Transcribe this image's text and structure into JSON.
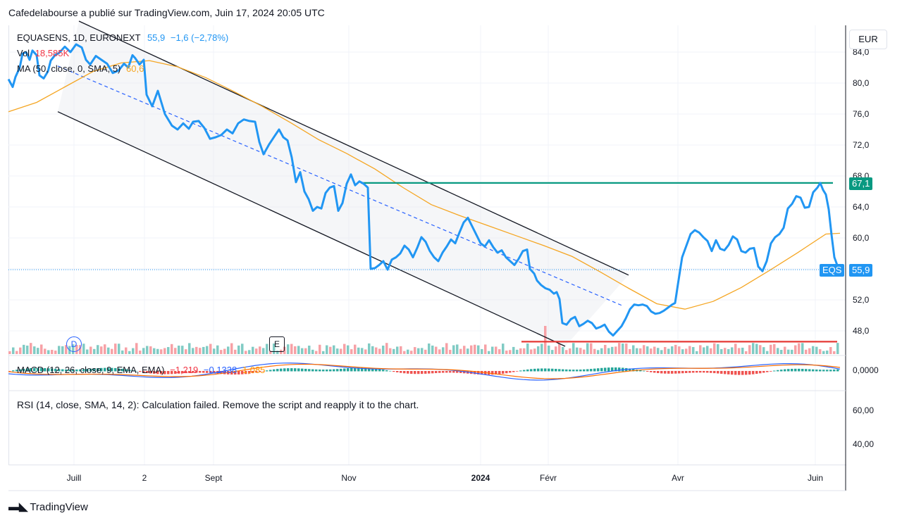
{
  "header": {
    "publisher_line": "Cafedelabourse a publié sur TradingView.com, Juin 17, 2024 20:05 UTC"
  },
  "legend": {
    "symbol": "EQUASENS, 1D, EURONEXT",
    "last": "55,9",
    "change": "−1,6 (−2,78%)",
    "vol_label": "Vol",
    "vol_value": "18,585K",
    "ma_label": "MA (50, close, 0, SMA, 5)",
    "ma_value": "60,6",
    "macd_label": "MACD (12, 26, close, 9, EMA, EMA)",
    "macd_hist": "−1,219",
    "macd_line": "−0,1338",
    "macd_signal": "1,085",
    "rsi_message": "RSI (14, close, SMA, 14, 2): Calculation failed. Remove the script and reapply it to the chart."
  },
  "currency": "EUR",
  "price_axis": [
    "84,0",
    "80,0",
    "76,0",
    "72,0",
    "68,0",
    "64,0",
    "60,0",
    "56,0",
    "52,0",
    "48,0"
  ],
  "macd_axis": [
    "0,0000"
  ],
  "rsi_axis": [
    "60,00",
    "40,00"
  ],
  "time_axis": [
    "Juill",
    "2",
    "Sept",
    "Nov",
    "2024",
    "Févr",
    "Avr",
    "Juin"
  ],
  "tags": {
    "resistance": "67,1",
    "symbol_short": "EQS",
    "last_price": "55,9"
  },
  "event_markers": {
    "dividend": "D",
    "earnings": "E"
  },
  "colors": {
    "price_line": "#2196f3",
    "ma": "#f5a623",
    "resistance": "#089981",
    "support": "#e53935",
    "vol_up": "#80cbc4",
    "vol_down": "#f7a1a6",
    "macd": "#2962ff",
    "signal": "#ff6d00",
    "channel": "#131722"
  },
  "footer": {
    "brand": "TradingView"
  },
  "chart_data": {
    "type": "line",
    "title": "EQUASENS, 1D, EURONEXT",
    "ylim": [
      45,
      86
    ],
    "price_series": {
      "name": "EQUASENS",
      "points": [
        [
          0,
          80.5
        ],
        [
          6,
          79.5
        ],
        [
          10,
          80.8
        ],
        [
          16,
          82.0
        ],
        [
          20,
          83.8
        ],
        [
          25,
          84.0
        ],
        [
          30,
          83.0
        ],
        [
          34,
          84.2
        ],
        [
          40,
          83.6
        ],
        [
          44,
          81.0
        ],
        [
          50,
          80.6
        ],
        [
          56,
          81.5
        ],
        [
          60,
          82.9
        ],
        [
          66,
          83.6
        ],
        [
          72,
          83.9
        ],
        [
          80,
          84.7
        ],
        [
          88,
          84.0
        ],
        [
          96,
          85.0
        ],
        [
          104,
          84.6
        ],
        [
          110,
          83.0
        ],
        [
          116,
          82.4
        ],
        [
          124,
          83.5
        ],
        [
          132,
          83.0
        ],
        [
          140,
          82.5
        ],
        [
          148,
          81.3
        ],
        [
          156,
          81.6
        ],
        [
          164,
          82.5
        ],
        [
          170,
          82.0
        ],
        [
          176,
          83.6
        ],
        [
          180,
          83.2
        ],
        [
          186,
          82.4
        ],
        [
          192,
          83.0
        ],
        [
          196,
          78.5
        ],
        [
          204,
          77.0
        ],
        [
          212,
          79.0
        ],
        [
          222,
          76.0
        ],
        [
          232,
          74.5
        ],
        [
          240,
          74.0
        ],
        [
          248,
          74.8
        ],
        [
          256,
          74.1
        ],
        [
          262,
          75.0
        ],
        [
          270,
          75.1
        ],
        [
          278,
          74.2
        ],
        [
          286,
          72.8
        ],
        [
          294,
          73.0
        ],
        [
          302,
          73.3
        ],
        [
          310,
          74.0
        ],
        [
          318,
          73.5
        ],
        [
          326,
          74.8
        ],
        [
          334,
          75.3
        ],
        [
          342,
          75.1
        ],
        [
          350,
          75.0
        ],
        [
          356,
          72.4
        ],
        [
          362,
          70.8
        ],
        [
          370,
          72.1
        ],
        [
          378,
          73.2
        ],
        [
          384,
          74.0
        ],
        [
          390,
          73.0
        ],
        [
          396,
          72.6
        ],
        [
          402,
          70.4
        ],
        [
          408,
          67.2
        ],
        [
          414,
          68.5
        ],
        [
          420,
          66.0
        ],
        [
          426,
          65.0
        ],
        [
          432,
          63.5
        ],
        [
          438,
          64.0
        ],
        [
          444,
          63.8
        ],
        [
          450,
          65.8
        ],
        [
          456,
          66.5
        ],
        [
          462,
          66.7
        ],
        [
          468,
          63.5
        ],
        [
          474,
          64.5
        ],
        [
          480,
          67.0
        ],
        [
          486,
          68.2
        ],
        [
          492,
          66.8
        ],
        [
          498,
          67.3
        ],
        [
          504,
          67.0
        ],
        [
          510,
          66.5
        ],
        [
          514,
          56.0
        ],
        [
          520,
          56.1
        ],
        [
          526,
          56.5
        ],
        [
          532,
          57.0
        ],
        [
          538,
          55.9
        ],
        [
          544,
          57.2
        ],
        [
          550,
          57.5
        ],
        [
          556,
          58.0
        ],
        [
          562,
          59.0
        ],
        [
          568,
          58.5
        ],
        [
          574,
          57.5
        ],
        [
          580,
          58.7
        ],
        [
          586,
          60.1
        ],
        [
          592,
          59.5
        ],
        [
          598,
          58.3
        ],
        [
          604,
          57.5
        ],
        [
          610,
          57.0
        ],
        [
          616,
          58.1
        ],
        [
          622,
          58.9
        ],
        [
          628,
          59.8
        ],
        [
          634,
          59.3
        ],
        [
          640,
          60.7
        ],
        [
          646,
          62.0
        ],
        [
          652,
          62.6
        ],
        [
          658,
          61.5
        ],
        [
          664,
          60.4
        ],
        [
          670,
          59.3
        ],
        [
          676,
          58.9
        ],
        [
          682,
          59.7
        ],
        [
          688,
          58.8
        ],
        [
          694,
          58.1
        ],
        [
          700,
          58.4
        ],
        [
          706,
          57.5
        ],
        [
          712,
          57.0
        ],
        [
          718,
          56.5
        ],
        [
          724,
          57.3
        ],
        [
          730,
          58.3
        ],
        [
          736,
          58.5
        ],
        [
          740,
          56.0
        ],
        [
          746,
          55.4
        ],
        [
          750,
          54.5
        ],
        [
          756,
          53.9
        ],
        [
          762,
          53.5
        ],
        [
          768,
          53.3
        ],
        [
          774,
          52.8
        ],
        [
          778,
          53.0
        ],
        [
          782,
          52.1
        ],
        [
          786,
          49.0
        ],
        [
          792,
          48.8
        ],
        [
          798,
          49.5
        ],
        [
          804,
          49.8
        ],
        [
          810,
          48.6
        ],
        [
          816,
          48.9
        ],
        [
          822,
          49.3
        ],
        [
          828,
          49.0
        ],
        [
          834,
          48.3
        ],
        [
          840,
          48.5
        ],
        [
          846,
          48.8
        ],
        [
          852,
          47.9
        ],
        [
          858,
          47.4
        ],
        [
          864,
          48.0
        ],
        [
          870,
          48.6
        ],
        [
          876,
          49.6
        ],
        [
          882,
          50.8
        ],
        [
          888,
          51.4
        ],
        [
          894,
          51.3
        ],
        [
          900,
          51.4
        ],
        [
          906,
          51.2
        ],
        [
          912,
          50.5
        ],
        [
          918,
          50.2
        ],
        [
          924,
          50.3
        ],
        [
          930,
          50.6
        ],
        [
          936,
          51.0
        ],
        [
          942,
          51.4
        ],
        [
          946,
          51.6
        ],
        [
          950,
          54.0
        ],
        [
          956,
          57.5
        ],
        [
          962,
          59.0
        ],
        [
          968,
          60.5
        ],
        [
          974,
          61.0
        ],
        [
          980,
          60.7
        ],
        [
          986,
          60.1
        ],
        [
          992,
          59.6
        ],
        [
          998,
          58.3
        ],
        [
          1004,
          59.7
        ],
        [
          1010,
          58.6
        ],
        [
          1016,
          58.4
        ],
        [
          1022,
          59.1
        ],
        [
          1028,
          60.2
        ],
        [
          1034,
          59.8
        ],
        [
          1040,
          58.3
        ],
        [
          1046,
          58.1
        ],
        [
          1052,
          58.6
        ],
        [
          1058,
          58.7
        ],
        [
          1064,
          56.3
        ],
        [
          1070,
          55.7
        ],
        [
          1076,
          57.0
        ],
        [
          1082,
          59.3
        ],
        [
          1088,
          60.1
        ],
        [
          1094,
          60.5
        ],
        [
          1100,
          61.3
        ],
        [
          1106,
          63.8
        ],
        [
          1112,
          64.4
        ],
        [
          1118,
          65.4
        ],
        [
          1124,
          65.2
        ],
        [
          1130,
          63.9
        ],
        [
          1136,
          64.0
        ],
        [
          1142,
          65.9
        ],
        [
          1148,
          66.5
        ],
        [
          1152,
          67.1
        ],
        [
          1156,
          66.2
        ],
        [
          1160,
          65.6
        ],
        [
          1164,
          63.7
        ],
        [
          1168,
          60.4
        ],
        [
          1172,
          57.5
        ],
        [
          1176,
          56.5
        ],
        [
          1180,
          55.9
        ]
      ]
    },
    "ma_series": {
      "name": "MA (50, close, 0, SMA, 5)",
      "points": [
        [
          0,
          76.3
        ],
        [
          40,
          77.5
        ],
        [
          80,
          79.5
        ],
        [
          120,
          81.5
        ],
        [
          160,
          82.6
        ],
        [
          200,
          82.9
        ],
        [
          240,
          82.1
        ],
        [
          280,
          80.7
        ],
        [
          320,
          78.9
        ],
        [
          360,
          77.0
        ],
        [
          400,
          74.9
        ],
        [
          440,
          72.7
        ],
        [
          480,
          70.9
        ],
        [
          520,
          68.9
        ],
        [
          560,
          66.5
        ],
        [
          600,
          64.3
        ],
        [
          640,
          62.9
        ],
        [
          680,
          61.6
        ],
        [
          720,
          60.3
        ],
        [
          760,
          59.0
        ],
        [
          800,
          57.6
        ],
        [
          840,
          55.6
        ],
        [
          880,
          53.5
        ],
        [
          920,
          51.5
        ],
        [
          960,
          50.8
        ],
        [
          1000,
          51.8
        ],
        [
          1040,
          53.6
        ],
        [
          1080,
          55.8
        ],
        [
          1120,
          58.1
        ],
        [
          1160,
          60.5
        ],
        [
          1180,
          60.6
        ]
      ]
    },
    "resistance": 67.1,
    "support": 46.6,
    "channel_upper": [
      [
        100,
        88
      ],
      [
        880,
        55.2
      ]
    ],
    "channel_lower": [
      [
        70,
        76.3
      ],
      [
        790,
        46.0
      ]
    ],
    "channel_mid": [
      [
        70,
        82.2
      ],
      [
        870,
        51.3
      ]
    ]
  }
}
